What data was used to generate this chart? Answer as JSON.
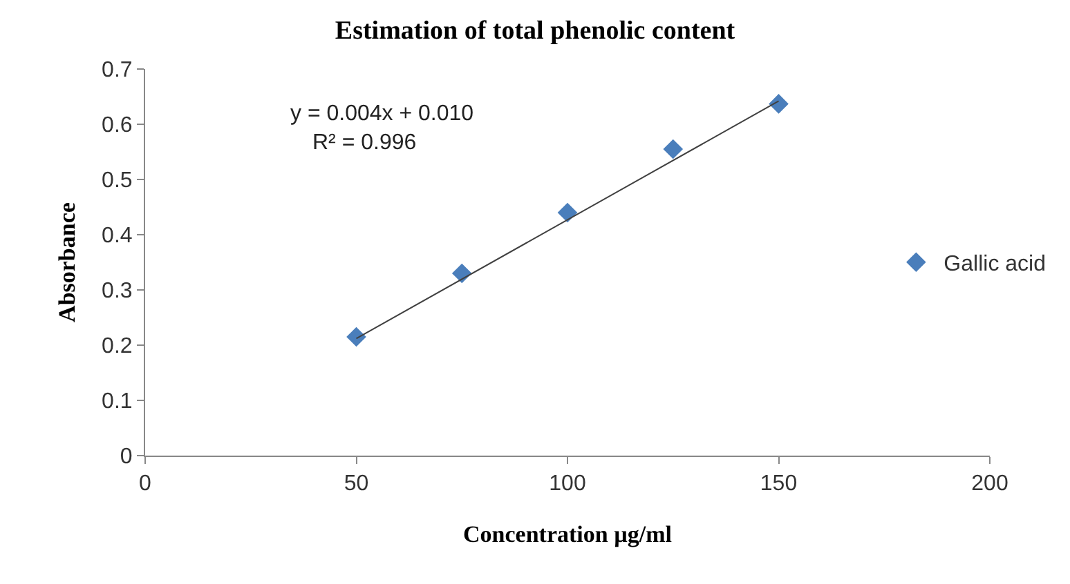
{
  "chart_data": {
    "type": "scatter",
    "title": "Estimation of total phenolic content",
    "xlabel": "Concentration µg/ml",
    "ylabel": "Absorbance",
    "x": [
      50,
      75,
      100,
      125,
      150
    ],
    "series": [
      {
        "name": "Gallic acid",
        "color": "#4a7ebb",
        "marker": "diamond",
        "values": [
          0.215,
          0.33,
          0.44,
          0.555,
          0.637
        ]
      },
      {
        "type": "line",
        "color": "#404040",
        "marker": "none",
        "x": [
          50,
          150
        ],
        "values": [
          0.212,
          0.642
        ]
      }
    ],
    "xlim": [
      0,
      200
    ],
    "xticks": [
      0,
      50,
      100,
      150,
      200
    ],
    "ylim": [
      0,
      0.7
    ],
    "yticks": [
      0,
      0.1,
      0.2,
      0.3,
      0.4,
      0.5,
      0.6,
      0.7
    ],
    "annotations": [
      "y = 0.004x + 0.010",
      "R² = 0.996"
    ],
    "grid": false,
    "legend": "right"
  }
}
